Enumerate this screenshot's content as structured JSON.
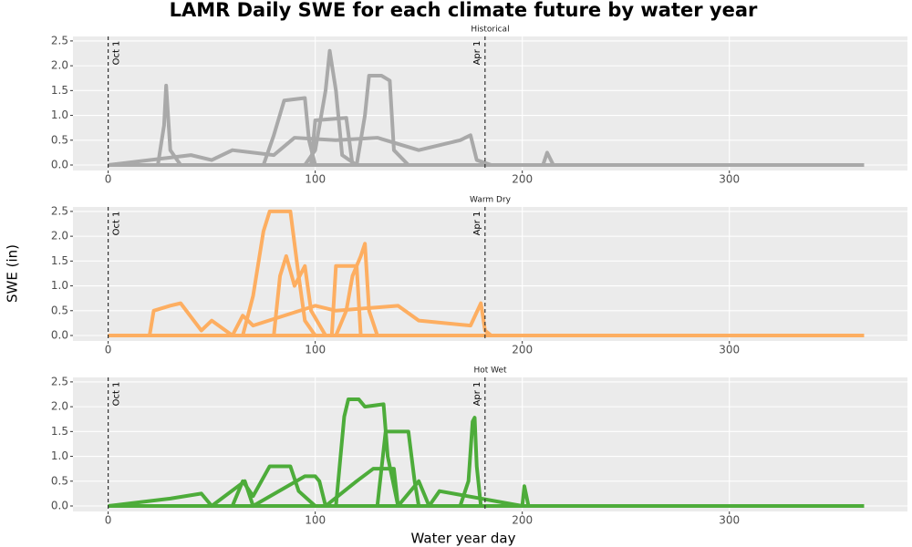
{
  "chart_data": {
    "type": "line",
    "title": "LAMR Daily SWE for each climate future by water year",
    "xlabel": "Water year day",
    "ylabel": "SWE (in)",
    "xlim": [
      -17,
      386
    ],
    "xticks": [
      0,
      100,
      200,
      300
    ],
    "ylim": [
      -0.11,
      2.59
    ],
    "yticks": [
      {
        "value": 0,
        "label": "0.0"
      },
      {
        "value": 0.5,
        "label": "0.5"
      },
      {
        "value": 1,
        "label": "1.0"
      },
      {
        "value": 1.5,
        "label": "1.5"
      },
      {
        "value": 2,
        "label": "2.0"
      },
      {
        "value": 2.5,
        "label": "2.5"
      }
    ],
    "grid": true,
    "vlines": [
      {
        "x": 0,
        "label": "Oct 1"
      },
      {
        "x": 182,
        "label": "Apr 1"
      }
    ],
    "panels": [
      {
        "subtitle": "Historical",
        "color": "#a9a9a9",
        "series": [
          {
            "x": [
              0,
              95,
              100,
              105,
              107,
              110,
              113,
              120,
              200,
              365
            ],
            "values": [
              0,
              0,
              0.3,
              1.5,
              2.3,
              1.5,
              0.2,
              0,
              0,
              0
            ]
          },
          {
            "x": [
              0,
              120,
              124,
              126,
              132,
              136,
              138,
              145,
              365
            ],
            "values": [
              0,
              0,
              1.0,
              1.8,
              1.8,
              1.7,
              0.3,
              0,
              0
            ]
          },
          {
            "x": [
              0,
              75,
              80,
              85,
              95,
              97,
              100,
              365
            ],
            "values": [
              0,
              0,
              0.6,
              1.3,
              1.35,
              0.5,
              0,
              0
            ]
          },
          {
            "x": [
              0,
              24,
              27,
              28,
              30,
              35,
              365
            ],
            "values": [
              0,
              0,
              0.8,
              1.6,
              0.3,
              0,
              0
            ]
          },
          {
            "x": [
              0,
              98,
              100,
              115,
              118,
              365
            ],
            "values": [
              0,
              0,
              0.9,
              0.95,
              0,
              0
            ]
          },
          {
            "x": [
              0,
              40,
              50,
              60,
              80,
              90,
              110,
              130,
              150,
              170,
              175,
              178,
              185,
              210,
              212,
              215,
              365
            ],
            "values": [
              0,
              0.2,
              0.1,
              0.3,
              0.2,
              0.55,
              0.5,
              0.55,
              0.3,
              0.5,
              0.6,
              0.1,
              0,
              0,
              0.25,
              0,
              0
            ]
          }
        ]
      },
      {
        "subtitle": "Warm Dry",
        "color": "#fdae61",
        "series": [
          {
            "x": [
              0,
              65,
              70,
              75,
              78,
              88,
              92,
              95,
              100,
              365
            ],
            "values": [
              0,
              0,
              0.8,
              2.1,
              2.5,
              2.5,
              1.2,
              0.3,
              0,
              0
            ]
          },
          {
            "x": [
              0,
              110,
              115,
              118,
              122,
              124,
              126,
              130,
              365
            ],
            "values": [
              0,
              0,
              0.5,
              1.2,
              1.6,
              1.85,
              0.5,
              0,
              0
            ]
          },
          {
            "x": [
              0,
              108,
              110,
              120,
              122,
              365
            ],
            "values": [
              0,
              0,
              1.4,
              1.4,
              0,
              0
            ]
          },
          {
            "x": [
              0,
              80,
              83,
              86,
              90,
              95,
              98,
              105,
              365
            ],
            "values": [
              0,
              0,
              1.2,
              1.6,
              1.0,
              1.4,
              0.5,
              0,
              0
            ]
          },
          {
            "x": [
              0,
              20,
              22,
              30,
              35,
              45,
              50,
              60,
              65,
              70,
              100,
              110,
              140,
              150,
              175,
              180,
              182,
              185,
              200,
              365
            ],
            "values": [
              0,
              0,
              0.5,
              0.6,
              0.65,
              0.1,
              0.3,
              0,
              0.4,
              0.2,
              0.6,
              0.5,
              0.6,
              0.3,
              0.2,
              0.65,
              0.1,
              0,
              0,
              0
            ]
          }
        ]
      },
      {
        "subtitle": "Hot Wet",
        "color": "#4dac3a",
        "series": [
          {
            "x": [
              0,
              110,
              114,
              116,
              121,
              124,
              133,
              135,
              140,
              365
            ],
            "values": [
              0,
              0,
              1.8,
              2.15,
              2.15,
              2.0,
              2.05,
              1.0,
              0,
              0
            ]
          },
          {
            "x": [
              0,
              170,
              174,
              176,
              177,
              178,
              180,
              365
            ],
            "values": [
              0,
              0,
              0.5,
              1.7,
              1.78,
              0.8,
              0,
              0
            ]
          },
          {
            "x": [
              0,
              130,
              134,
              145,
              148,
              150,
              365
            ],
            "values": [
              0,
              0,
              1.5,
              1.5,
              0.5,
              0,
              0
            ]
          },
          {
            "x": [
              0,
              60,
              65,
              70,
              78,
              88,
              92,
              100,
              365
            ],
            "values": [
              0,
              0,
              0.5,
              0.2,
              0.8,
              0.8,
              0.3,
              0,
              0
            ]
          },
          {
            "x": [
              0,
              30,
              45,
              50,
              66,
              70,
              95,
              100,
              102,
              105,
              120,
              128,
              138,
              140,
              150,
              155,
              160,
              200,
              201,
              203,
              365
            ],
            "values": [
              0,
              0.15,
              0.25,
              0,
              0.5,
              0,
              0.6,
              0.6,
              0.5,
              0,
              0.5,
              0.75,
              0.75,
              0,
              0.5,
              0,
              0.3,
              0,
              0.4,
              0,
              0
            ]
          }
        ]
      }
    ]
  }
}
